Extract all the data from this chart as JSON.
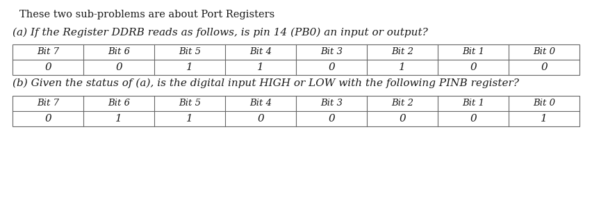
{
  "title": "These two sub-problems are about Port Registers",
  "q_a": "(a) If the Register DDRB reads as follows, is pin 14 (PB0) an input or output?",
  "q_b": "(b) Given the status of (a), is the digital input HIGH or LOW with the following PINB register?",
  "table_a_headers": [
    "Bit 7",
    "Bit 6",
    "Bit 5",
    "Bit 4",
    "Bit 3",
    "Bit 2",
    "Bit 1",
    "Bit 0"
  ],
  "table_a_values": [
    "0",
    "0",
    "1",
    "1",
    "0",
    "1",
    "0",
    "0"
  ],
  "table_b_headers": [
    "Bit 7",
    "Bit 6",
    "Bit 5",
    "Bit 4",
    "Bit 3",
    "Bit 2",
    "Bit 1",
    "Bit 0"
  ],
  "table_b_values": [
    "0",
    "1",
    "1",
    "0",
    "0",
    "0",
    "0",
    "1"
  ],
  "bg_color": "#ffffff",
  "text_color": "#1a1a1a",
  "table_border_color": "#666666",
  "title_font_size": 10.5,
  "question_font_size": 11,
  "header_font_size": 9.5,
  "value_font_size": 11,
  "fig_width": 8.52,
  "fig_height": 3.01
}
